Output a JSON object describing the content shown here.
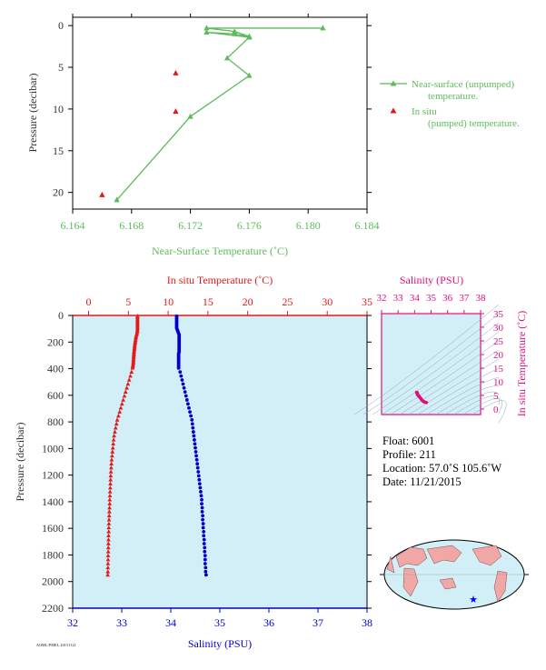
{
  "info": {
    "float": "Float:  6001",
    "profile": "Profile:  211",
    "location": "Location:  57.0˚S  105.6˚W",
    "date": "Date:  11/21/2015"
  },
  "footer_code": "AOML/PMEL 20151121",
  "chart_data": [
    {
      "type": "line",
      "xlabel": "Near-Surface Temperature (˚C)",
      "ylabel": "Pressure (decibar)",
      "xlim": [
        6.164,
        6.184
      ],
      "ylim": [
        22,
        -1
      ],
      "xticks": [
        "6.164",
        "6.168",
        "6.172",
        "6.176",
        "6.180",
        "6.184"
      ],
      "yticks": [
        "0",
        "5",
        "10",
        "15",
        "20"
      ],
      "legend_position": "right",
      "colors": {
        "unpumped": "#5dbb5d",
        "pumped": "#e31a1c"
      },
      "series": [
        {
          "name": "Near-surface (unpumped) temperature.",
          "marker": "triangle",
          "points": [
            [
              6.181,
              0.3
            ],
            [
              6.1731,
              0.3
            ],
            [
              6.175,
              0.7
            ],
            [
              6.176,
              1.3
            ],
            [
              6.175,
              1.0
            ],
            [
              6.1731,
              0.8
            ],
            [
              6.176,
              1.4
            ],
            [
              6.1745,
              3.9
            ],
            [
              6.176,
              6.0
            ],
            [
              6.172,
              10.9
            ],
            [
              6.167,
              20.9
            ]
          ]
        },
        {
          "name": "In situ (pumped) temperature.",
          "marker": "triangle",
          "points": [
            [
              6.171,
              5.7
            ],
            [
              6.171,
              10.3
            ],
            [
              6.166,
              20.3
            ]
          ]
        }
      ]
    },
    {
      "type": "scatter",
      "ylabel": "Pressure (decibar)",
      "ylim": [
        2200,
        0
      ],
      "yticks": [
        "0",
        "200",
        "400",
        "600",
        "800",
        "1000",
        "1200",
        "1400",
        "1600",
        "1800",
        "2000",
        "2200"
      ],
      "x_top": {
        "label": "In situ Temperature (˚C)",
        "lim": [
          -2,
          35
        ],
        "ticks": [
          "0",
          "5",
          "10",
          "15",
          "20",
          "25",
          "30",
          "35"
        ],
        "color": "#e31a1c"
      },
      "x_bottom": {
        "label": "Salinity (PSU)",
        "lim": [
          32,
          38
        ],
        "ticks": [
          "32",
          "33",
          "34",
          "35",
          "36",
          "37",
          "38"
        ],
        "color": "#0000cc"
      },
      "background": "#d2eef7",
      "series": [
        {
          "name": "Temperature",
          "axis": "top",
          "color": "#e31a1c",
          "marker": "triangle",
          "points": [
            [
              6.15,
              5
            ],
            [
              6.15,
              15
            ],
            [
              6.15,
              25
            ],
            [
              6.15,
              35
            ],
            [
              6.15,
              45
            ],
            [
              6.15,
              55
            ],
            [
              6.15,
              65
            ],
            [
              6.15,
              75
            ],
            [
              6.15,
              85
            ],
            [
              6.15,
              95
            ],
            [
              6.14,
              105
            ],
            [
              6.13,
              115
            ],
            [
              6.1,
              125
            ],
            [
              6.07,
              135
            ],
            [
              6.03,
              145
            ],
            [
              5.98,
              155
            ],
            [
              5.95,
              165
            ],
            [
              5.92,
              175
            ],
            [
              5.9,
              185
            ],
            [
              5.87,
              195
            ],
            [
              5.85,
              205
            ],
            [
              5.82,
              215
            ],
            [
              5.8,
              225
            ],
            [
              5.78,
              235
            ],
            [
              5.77,
              245
            ],
            [
              5.75,
              255
            ],
            [
              5.73,
              265
            ],
            [
              5.71,
              275
            ],
            [
              5.7,
              285
            ],
            [
              5.69,
              295
            ],
            [
              5.67,
              305
            ],
            [
              5.66,
              315
            ],
            [
              5.65,
              325
            ],
            [
              5.64,
              335
            ],
            [
              5.63,
              345
            ],
            [
              5.62,
              355
            ],
            [
              5.6,
              365
            ],
            [
              5.58,
              375
            ],
            [
              5.55,
              385
            ],
            [
              5.52,
              395
            ],
            [
              5.4,
              425
            ],
            [
              5.25,
              455
            ],
            [
              5.1,
              485
            ],
            [
              4.95,
              515
            ],
            [
              4.8,
              545
            ],
            [
              4.65,
              575
            ],
            [
              4.5,
              605
            ],
            [
              4.35,
              635
            ],
            [
              4.2,
              665
            ],
            [
              4.05,
              695
            ],
            [
              3.9,
              725
            ],
            [
              3.75,
              755
            ],
            [
              3.6,
              785
            ],
            [
              3.5,
              815
            ],
            [
              3.4,
              845
            ],
            [
              3.3,
              875
            ],
            [
              3.2,
              905
            ],
            [
              3.15,
              935
            ],
            [
              3.1,
              965
            ],
            [
              3.05,
              995
            ],
            [
              3.0,
              1025
            ],
            [
              2.95,
              1055
            ],
            [
              2.9,
              1085
            ],
            [
              2.87,
              1115
            ],
            [
              2.84,
              1145
            ],
            [
              2.81,
              1175
            ],
            [
              2.78,
              1205
            ],
            [
              2.76,
              1235
            ],
            [
              2.74,
              1265
            ],
            [
              2.72,
              1295
            ],
            [
              2.7,
              1325
            ],
            [
              2.68,
              1355
            ],
            [
              2.66,
              1385
            ],
            [
              2.65,
              1415
            ],
            [
              2.63,
              1445
            ],
            [
              2.61,
              1475
            ],
            [
              2.59,
              1505
            ],
            [
              2.57,
              1535
            ],
            [
              2.55,
              1565
            ],
            [
              2.54,
              1595
            ],
            [
              2.53,
              1625
            ],
            [
              2.51,
              1655
            ],
            [
              2.5,
              1685
            ],
            [
              2.49,
              1715
            ],
            [
              2.48,
              1745
            ],
            [
              2.47,
              1775
            ],
            [
              2.46,
              1805
            ],
            [
              2.45,
              1835
            ],
            [
              2.44,
              1865
            ],
            [
              2.43,
              1895
            ],
            [
              2.42,
              1925
            ],
            [
              2.41,
              1950
            ]
          ]
        },
        {
          "name": "Salinity",
          "axis": "bottom",
          "color": "#0000cc",
          "marker": "circle",
          "points": [
            [
              34.12,
              5
            ],
            [
              34.12,
              15
            ],
            [
              34.12,
              25
            ],
            [
              34.12,
              35
            ],
            [
              34.12,
              45
            ],
            [
              34.12,
              55
            ],
            [
              34.12,
              65
            ],
            [
              34.12,
              75
            ],
            [
              34.12,
              85
            ],
            [
              34.12,
              95
            ],
            [
              34.13,
              105
            ],
            [
              34.14,
              115
            ],
            [
              34.15,
              125
            ],
            [
              34.16,
              135
            ],
            [
              34.17,
              145
            ],
            [
              34.17,
              155
            ],
            [
              34.17,
              165
            ],
            [
              34.17,
              175
            ],
            [
              34.17,
              185
            ],
            [
              34.17,
              195
            ],
            [
              34.17,
              205
            ],
            [
              34.17,
              215
            ],
            [
              34.17,
              225
            ],
            [
              34.17,
              235
            ],
            [
              34.17,
              245
            ],
            [
              34.17,
              255
            ],
            [
              34.17,
              265
            ],
            [
              34.17,
              275
            ],
            [
              34.16,
              285
            ],
            [
              34.16,
              295
            ],
            [
              34.16,
              305
            ],
            [
              34.16,
              315
            ],
            [
              34.16,
              325
            ],
            [
              34.16,
              335
            ],
            [
              34.16,
              345
            ],
            [
              34.16,
              355
            ],
            [
              34.16,
              365
            ],
            [
              34.16,
              375
            ],
            [
              34.16,
              385
            ],
            [
              34.16,
              395
            ],
            [
              34.19,
              425
            ],
            [
              34.21,
              455
            ],
            [
              34.23,
              485
            ],
            [
              34.25,
              515
            ],
            [
              34.27,
              545
            ],
            [
              34.29,
              575
            ],
            [
              34.31,
              605
            ],
            [
              34.33,
              635
            ],
            [
              34.35,
              665
            ],
            [
              34.37,
              695
            ],
            [
              34.39,
              725
            ],
            [
              34.41,
              755
            ],
            [
              34.43,
              785
            ],
            [
              34.44,
              815
            ],
            [
              34.45,
              845
            ],
            [
              34.46,
              875
            ],
            [
              34.47,
              905
            ],
            [
              34.48,
              935
            ],
            [
              34.49,
              965
            ],
            [
              34.5,
              995
            ],
            [
              34.51,
              1025
            ],
            [
              34.52,
              1055
            ],
            [
              34.53,
              1085
            ],
            [
              34.54,
              1115
            ],
            [
              34.55,
              1145
            ],
            [
              34.56,
              1175
            ],
            [
              34.57,
              1205
            ],
            [
              34.58,
              1235
            ],
            [
              34.59,
              1265
            ],
            [
              34.6,
              1295
            ],
            [
              34.61,
              1325
            ],
            [
              34.62,
              1355
            ],
            [
              34.63,
              1385
            ],
            [
              34.63,
              1415
            ],
            [
              34.64,
              1445
            ],
            [
              34.64,
              1475
            ],
            [
              34.65,
              1505
            ],
            [
              34.65,
              1535
            ],
            [
              34.66,
              1565
            ],
            [
              34.66,
              1595
            ],
            [
              34.67,
              1625
            ],
            [
              34.67,
              1655
            ],
            [
              34.68,
              1685
            ],
            [
              34.68,
              1715
            ],
            [
              34.69,
              1745
            ],
            [
              34.69,
              1775
            ],
            [
              34.7,
              1805
            ],
            [
              34.7,
              1835
            ],
            [
              34.7,
              1865
            ],
            [
              34.71,
              1895
            ],
            [
              34.71,
              1925
            ],
            [
              34.72,
              1950
            ]
          ]
        }
      ]
    },
    {
      "type": "scatter",
      "title": "Salinity (PSU)",
      "xlabel": "Salinity (PSU)",
      "ylabel": "In situ Temperature (˚C)",
      "xlim": [
        32,
        38
      ],
      "ylim": [
        -2,
        35
      ],
      "xticks": [
        "32",
        "33",
        "34",
        "35",
        "36",
        "37",
        "38"
      ],
      "yticks": [
        "0",
        "5",
        "10",
        "15",
        "20",
        "25",
        "30",
        "35"
      ],
      "color": "#e0107a",
      "background": "#d2eef7",
      "points": [
        [
          34.12,
          6.15
        ],
        [
          34.14,
          6.05
        ],
        [
          34.16,
          5.95
        ],
        [
          34.17,
          5.85
        ],
        [
          34.17,
          5.7
        ],
        [
          34.16,
          5.55
        ],
        [
          34.18,
          5.3
        ],
        [
          34.21,
          5.1
        ],
        [
          34.24,
          4.9
        ],
        [
          34.28,
          4.6
        ],
        [
          34.32,
          4.3
        ],
        [
          34.36,
          4.0
        ],
        [
          34.4,
          3.7
        ],
        [
          34.44,
          3.4
        ],
        [
          34.48,
          3.1
        ],
        [
          34.52,
          2.9
        ],
        [
          34.56,
          2.75
        ],
        [
          34.6,
          2.62
        ],
        [
          34.64,
          2.52
        ],
        [
          34.68,
          2.45
        ],
        [
          34.72,
          2.41
        ]
      ]
    },
    {
      "type": "map",
      "marker": {
        "lat": -57.0,
        "lon": -105.6,
        "symbol": "star",
        "color": "#0000ff"
      }
    }
  ]
}
